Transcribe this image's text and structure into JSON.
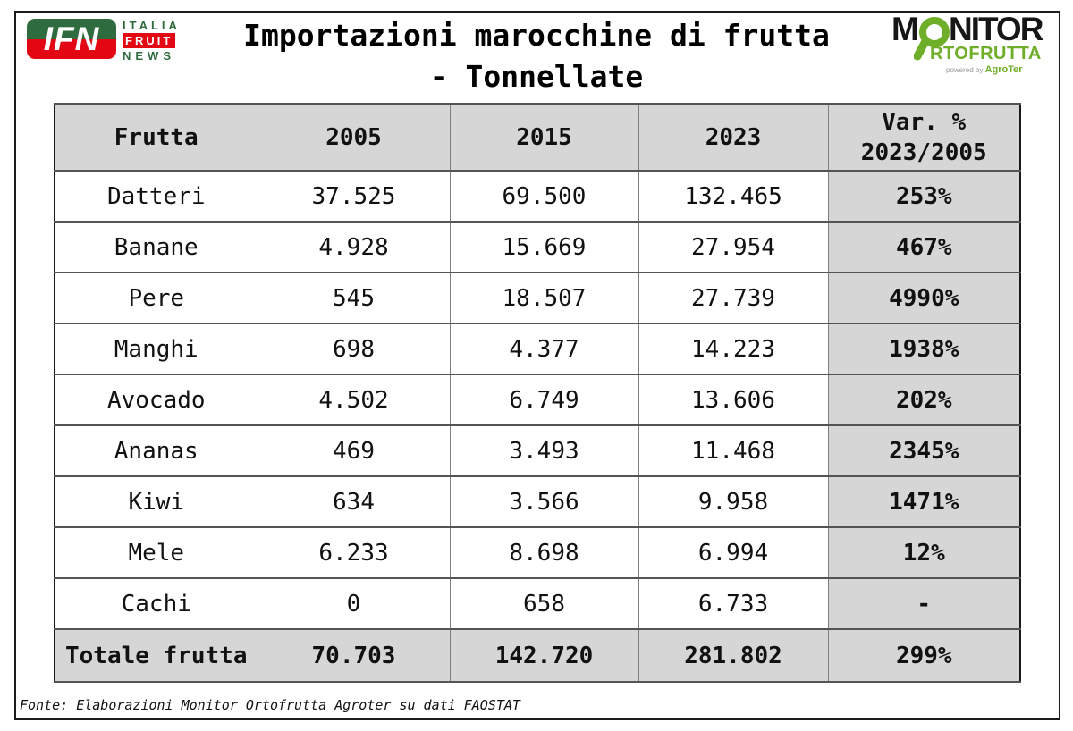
{
  "header": {
    "title_line1": "Importazioni marocchine di frutta",
    "title_line2": "- Tonnellate"
  },
  "logos": {
    "ifn": {
      "badge_text": "IFN",
      "word1": "ITALIA",
      "word2": "FRUIT",
      "word3": "NEWS",
      "green": "#2e6b3e",
      "red": "#e30613"
    },
    "monitor": {
      "line1_prefix": "M",
      "line1_suffix": "NITOR",
      "line2": "RTOFRUTTA",
      "powered_by": "powered by",
      "brand": "AgroTer",
      "green": "#6fae28",
      "black": "#161616"
    }
  },
  "table": {
    "columns": [
      "Frutta",
      "2005",
      "2015",
      "2023"
    ],
    "var_header": {
      "line1": "Var. %",
      "line2": "2023/2005"
    },
    "header_bg": "#d6d6d6",
    "rows": [
      [
        "Datteri",
        "37.525",
        "69.500",
        "132.465",
        "253%"
      ],
      [
        "Banane",
        "4.928",
        "15.669",
        "27.954",
        "467%"
      ],
      [
        "Pere",
        "545",
        "18.507",
        "27.739",
        "4990%"
      ],
      [
        "Manghi",
        "698",
        "4.377",
        "14.223",
        "1938%"
      ],
      [
        "Avocado",
        "4.502",
        "6.749",
        "13.606",
        "202%"
      ],
      [
        "Ananas",
        "469",
        "3.493",
        "11.468",
        "2345%"
      ],
      [
        "Kiwi",
        "634",
        "3.566",
        "9.958",
        "1471%"
      ],
      [
        "Mele",
        "6.233",
        "8.698",
        "6.994",
        "12%"
      ],
      [
        "Cachi",
        "0",
        "658",
        "6.733",
        "-"
      ]
    ],
    "total_row": [
      "Totale frutta",
      "70.703",
      "142.720",
      "281.802",
      "299%"
    ]
  },
  "footer": {
    "source": "Fonte: Elaborazioni Monitor Ortofrutta Agroter su dati FAOSTAT"
  },
  "chart_data": {
    "type": "table",
    "title": "Importazioni marocchine di frutta - Tonnellate",
    "unit": "tonnellate",
    "categories": [
      "Datteri",
      "Banane",
      "Pere",
      "Manghi",
      "Avocado",
      "Ananas",
      "Kiwi",
      "Mele",
      "Cachi",
      "Totale frutta"
    ],
    "series": [
      {
        "name": "2005",
        "values": [
          37525,
          4928,
          545,
          698,
          4502,
          469,
          634,
          6233,
          0,
          70703
        ]
      },
      {
        "name": "2015",
        "values": [
          69500,
          15669,
          18507,
          4377,
          6749,
          3493,
          3566,
          8698,
          658,
          142720
        ]
      },
      {
        "name": "2023",
        "values": [
          132465,
          27954,
          27739,
          14223,
          13606,
          11468,
          9958,
          6994,
          6733,
          281802
        ]
      },
      {
        "name": "Var. % 2023/2005",
        "values": [
          253,
          467,
          4990,
          1938,
          202,
          2345,
          1471,
          12,
          null,
          299
        ]
      }
    ],
    "source": "Fonte: Elaborazioni Monitor Ortofrutta Agroter su dati FAOSTAT"
  }
}
